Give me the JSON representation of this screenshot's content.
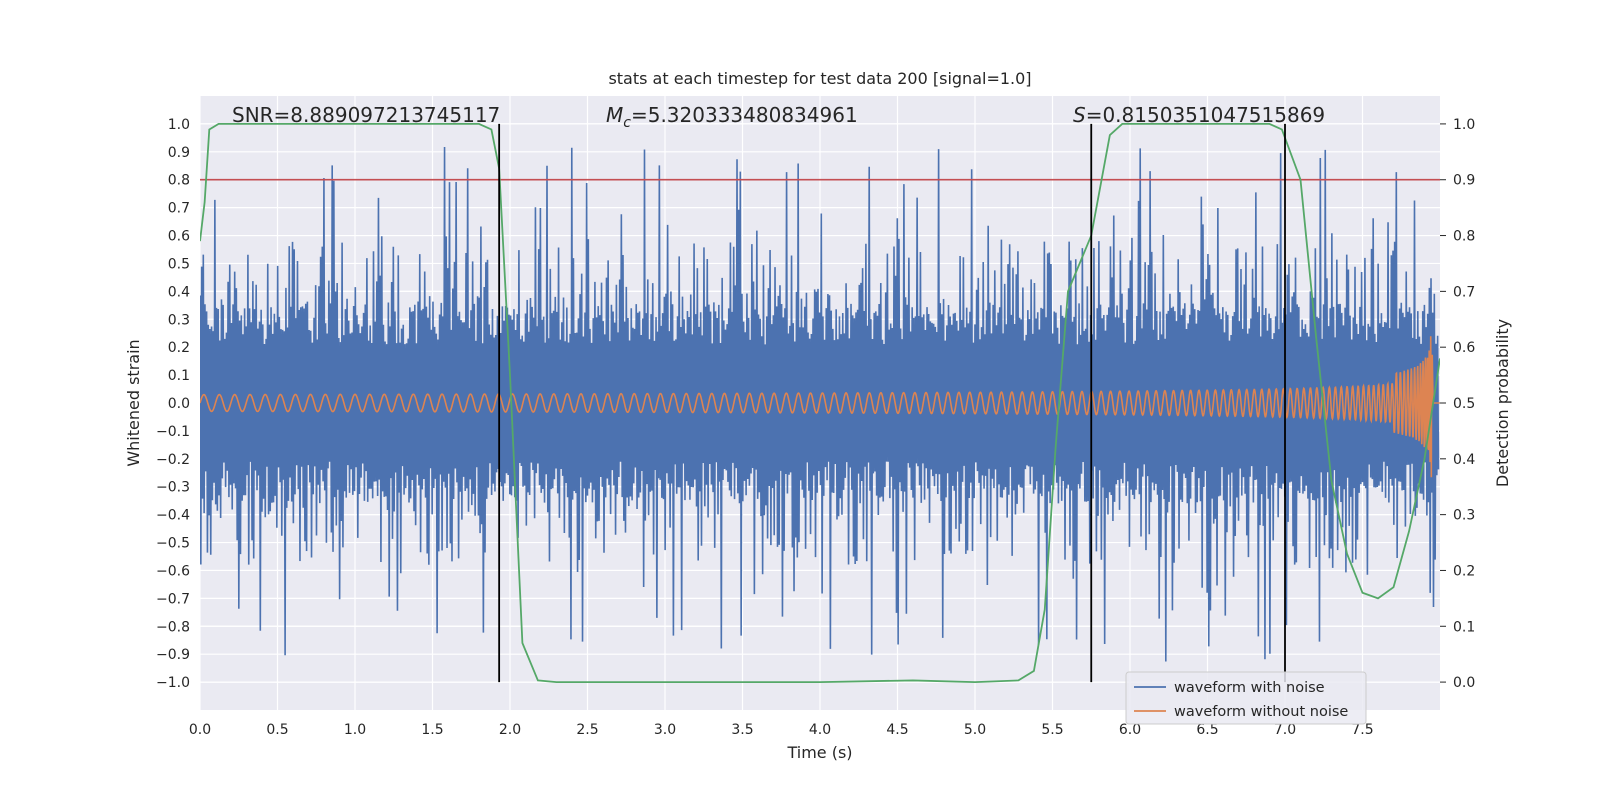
{
  "chart_data": {
    "type": "line",
    "title": "stats at each timestep for test data 200 [signal=1.0]",
    "xlabel": "Time (s)",
    "ylabel": "Whitened strain",
    "ylabel_right": "Detection probability",
    "xlim": [
      0.0,
      8.0
    ],
    "ylim": [
      -1.1,
      1.1
    ],
    "ylim_right": [
      -0.05,
      1.05
    ],
    "x_ticks": [
      0.0,
      0.5,
      1.0,
      1.5,
      2.0,
      2.5,
      3.0,
      3.5,
      4.0,
      4.5,
      5.0,
      5.5,
      6.0,
      6.5,
      7.0,
      7.5
    ],
    "x_tick_labels": [
      "0.0",
      "0.5",
      "1.0",
      "1.5",
      "2.0",
      "2.5",
      "3.0",
      "3.5",
      "4.0",
      "4.5",
      "5.0",
      "5.5",
      "6.0",
      "6.5",
      "7.0",
      "7.5"
    ],
    "y_ticks": [
      1.0,
      0.9,
      0.8,
      0.7,
      0.6,
      0.5,
      0.4,
      0.3,
      0.2,
      0.1,
      0.0,
      -0.1,
      -0.2,
      -0.3,
      -0.4,
      -0.5,
      -0.6,
      -0.7,
      -0.8,
      -0.9,
      -1.0
    ],
    "y_tick_labels": [
      "1.0",
      "0.9",
      "0.8",
      "0.7",
      "0.6",
      "0.5",
      "0.4",
      "0.3",
      "0.2",
      "0.1",
      "0.0",
      "−0.1",
      "−0.2",
      "−0.3",
      "−0.4",
      "−0.5",
      "−0.6",
      "−0.7",
      "−0.8",
      "−0.9",
      "−1.0"
    ],
    "y_right_ticks": [
      1.0,
      0.9,
      0.8,
      0.7,
      0.6,
      0.5,
      0.4,
      0.3,
      0.2,
      0.1,
      0.0
    ],
    "y_right_tick_labels": [
      "1.0",
      "0.9",
      "0.8",
      "0.7",
      "0.6",
      "0.5",
      "0.4",
      "0.3",
      "0.2",
      "0.1",
      "0.0"
    ],
    "annotations": {
      "snr": "SNR=8.889097213745117",
      "mc_symbol": "M",
      "mc_sub": "c",
      "mc_value": "=5.320333480834961",
      "s_symbol": "S",
      "s_value": "=0.8150351047515869"
    },
    "threshold": {
      "value": 0.9,
      "axis": "right",
      "color": "#c44e52"
    },
    "vertical_lines": [
      1.93,
      5.75,
      7.0
    ],
    "legend": {
      "position": "lower-right",
      "entries": [
        {
          "label": "waveform with noise",
          "color": "#4c72b0"
        },
        {
          "label": "waveform without noise",
          "color": "#dd8452"
        }
      ]
    },
    "series": [
      {
        "name": "waveform with noise",
        "color": "#4c72b0",
        "description": "whitened noisy strain, dense noise band",
        "approx_core_amplitude": 0.3,
        "approx_peak_amplitude": 0.93
      },
      {
        "name": "waveform without noise",
        "color": "#dd8452",
        "description": "chirp signal growing in amplitude, merger near 7.95 s",
        "amplitude_start": 0.03,
        "amplitude_merger": 0.33,
        "merger_time": 7.95
      },
      {
        "name": "detection probability",
        "color": "#55a868",
        "axis": "right",
        "x": [
          0.0,
          0.03,
          0.06,
          0.12,
          0.3,
          1.0,
          1.5,
          1.8,
          1.88,
          1.93,
          2.0,
          2.08,
          2.18,
          2.3,
          3.0,
          4.0,
          4.6,
          5.0,
          5.28,
          5.38,
          5.45,
          5.52,
          5.6,
          5.75,
          5.87,
          5.95,
          6.1,
          6.5,
          6.9,
          6.98,
          7.1,
          7.2,
          7.3,
          7.4,
          7.5,
          7.6,
          7.7,
          7.8,
          7.9,
          8.0
        ],
        "y": [
          0.79,
          0.86,
          0.99,
          1.0,
          1.0,
          1.0,
          1.0,
          1.0,
          0.99,
          0.92,
          0.55,
          0.07,
          0.003,
          0.0,
          0.0,
          0.0,
          0.003,
          0.0,
          0.003,
          0.02,
          0.13,
          0.42,
          0.7,
          0.8,
          0.98,
          1.0,
          1.0,
          1.0,
          1.0,
          0.99,
          0.9,
          0.62,
          0.36,
          0.23,
          0.16,
          0.15,
          0.17,
          0.27,
          0.4,
          0.58
        ]
      }
    ]
  }
}
